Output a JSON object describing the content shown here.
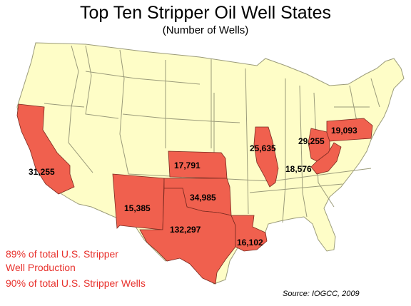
{
  "title": "Top Ten Stripper Oil Well States",
  "subtitle": "(Number of Wells)",
  "colors": {
    "highlight": "#f0604e",
    "land": "#fefdc7",
    "border": "#9b9b7a",
    "note": "#e8312c"
  },
  "states": [
    {
      "name": "California",
      "wells": "31,255"
    },
    {
      "name": "Kansas",
      "wells": "17,791"
    },
    {
      "name": "Illinois",
      "wells": "25,635"
    },
    {
      "name": "Ohio",
      "wells": "29,255"
    },
    {
      "name": "Pennsylvania",
      "wells": "19,093"
    },
    {
      "name": "West Virginia",
      "wells": "18,576"
    },
    {
      "name": "New Mexico",
      "wells": "15,385"
    },
    {
      "name": "Oklahoma",
      "wells": "34,985"
    },
    {
      "name": "Texas",
      "wells": "132,297"
    },
    {
      "name": "Louisiana",
      "wells": "16,102"
    }
  ],
  "notes": {
    "line1": "89% of total U.S. Stripper",
    "line2": "Well Production",
    "line3": "90% of total U.S. Stripper Wells"
  },
  "source": "Source: IOGCC, 2009"
}
